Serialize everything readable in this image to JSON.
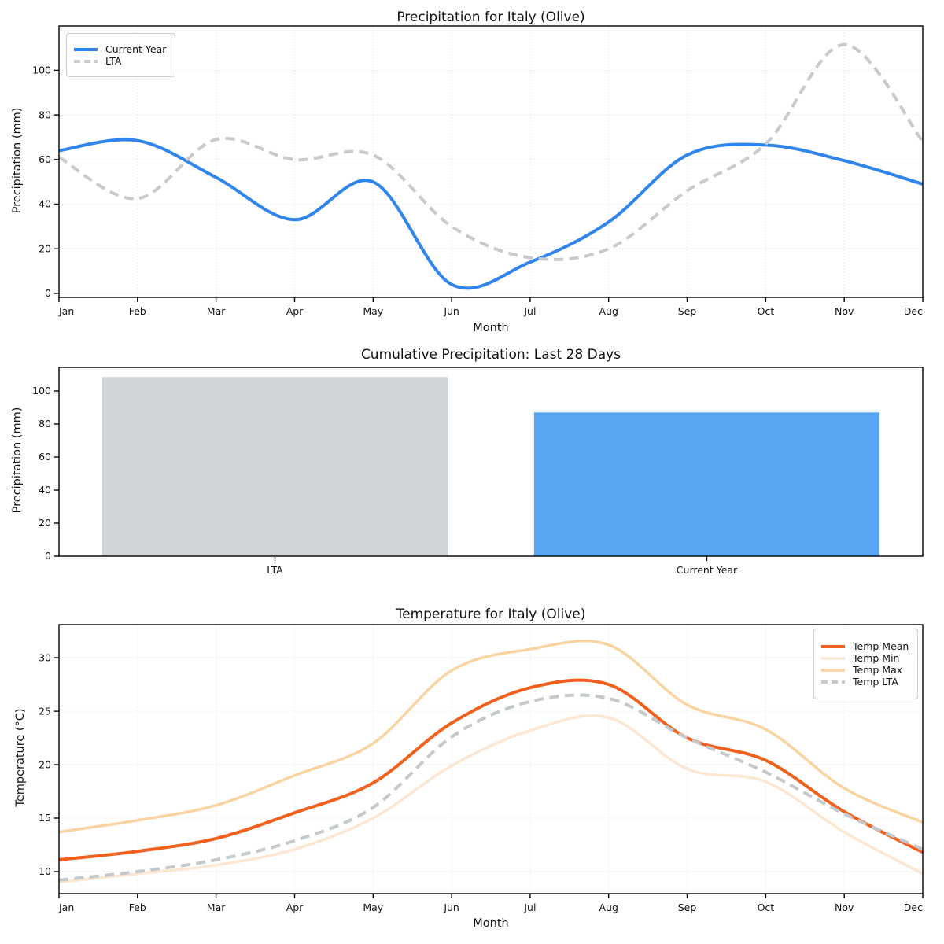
{
  "figure": {
    "background": "#ffffff",
    "months": [
      "Jan",
      "Feb",
      "Mar",
      "Apr",
      "May",
      "Jun",
      "Jul",
      "Aug",
      "Sep",
      "Oct",
      "Nov",
      "Dec"
    ]
  },
  "chart_data": [
    {
      "type": "line",
      "title": "Precipitation for Italy (Olive)",
      "xlabel": "Month",
      "ylabel": "Precipitation (mm)",
      "x_ticklabels": [
        "Jan",
        "Feb",
        "Mar",
        "Apr",
        "May",
        "Jun",
        "Jul",
        "Aug",
        "Sep",
        "Oct",
        "Nov",
        "Dec"
      ],
      "yticks": [
        0,
        20,
        40,
        60,
        80,
        100
      ],
      "ylim": [
        -1.8,
        119.9
      ],
      "grid": true,
      "legend_position": "upper-left",
      "series": [
        {
          "name": "Current Year",
          "color": "#2f85ec",
          "style": "solid",
          "width": 4,
          "values": [
            64,
            68.5,
            52,
            33,
            50,
            4,
            14,
            32,
            62,
            66.5,
            59.5,
            49
          ]
        },
        {
          "name": "LTA",
          "color": "#c7cbce",
          "style": "dashed",
          "width": 4,
          "values": [
            61,
            42.5,
            69,
            60,
            62,
            30,
            16,
            20,
            46,
            67,
            111.5,
            68
          ]
        }
      ]
    },
    {
      "type": "bar",
      "title": "Cumulative Precipitation: Last 28 Days",
      "xlabel": "",
      "ylabel": "Precipitation (mm)",
      "categories": [
        "LTA",
        "Current Year"
      ],
      "values": [
        108.5,
        87
      ],
      "colors": [
        "#d2d5d8",
        "#57a5f3"
      ],
      "yticks": [
        0,
        20,
        40,
        60,
        80,
        100
      ],
      "ylim": [
        0,
        114.3
      ],
      "grid": false
    },
    {
      "type": "line",
      "title": "Temperature for Italy (Olive)",
      "xlabel": "Month",
      "ylabel": "Temperature (°C)",
      "x_ticklabels": [
        "Jan",
        "Feb",
        "Mar",
        "Apr",
        "May",
        "Jun",
        "Jul",
        "Aug",
        "Sep",
        "Oct",
        "Nov",
        "Dec"
      ],
      "yticks": [
        10,
        15,
        20,
        25,
        30
      ],
      "ylim": [
        7.94,
        33.1
      ],
      "grid": true,
      "legend_position": "upper-right",
      "series": [
        {
          "name": "Temp Mean",
          "color": "#f2601d",
          "style": "solid",
          "width": 4,
          "values": [
            11.1,
            11.9,
            13.1,
            15.5,
            18.3,
            23.9,
            27.2,
            27.5,
            22.5,
            20.4,
            15.6,
            11.8
          ]
        },
        {
          "name": "Temp Min",
          "color": "#fce7d3",
          "style": "solid",
          "width": 3.5,
          "values": [
            9.0,
            9.8,
            10.6,
            12.1,
            15.0,
            19.9,
            23.2,
            24.4,
            19.6,
            18.4,
            13.7,
            9.8
          ]
        },
        {
          "name": "Temp Max",
          "color": "#f9d4a2",
          "style": "solid",
          "width": 3.5,
          "values": [
            13.7,
            14.8,
            16.2,
            19.0,
            22.0,
            28.8,
            30.8,
            31.2,
            25.6,
            23.3,
            17.8,
            14.6
          ]
        },
        {
          "name": "Temp LTA",
          "color": "#c4c9cc",
          "style": "dashed",
          "width": 4,
          "values": [
            9.2,
            10.0,
            11.1,
            12.9,
            16.0,
            22.6,
            25.9,
            26.2,
            22.5,
            19.3,
            15.4,
            12.1
          ]
        }
      ]
    }
  ]
}
